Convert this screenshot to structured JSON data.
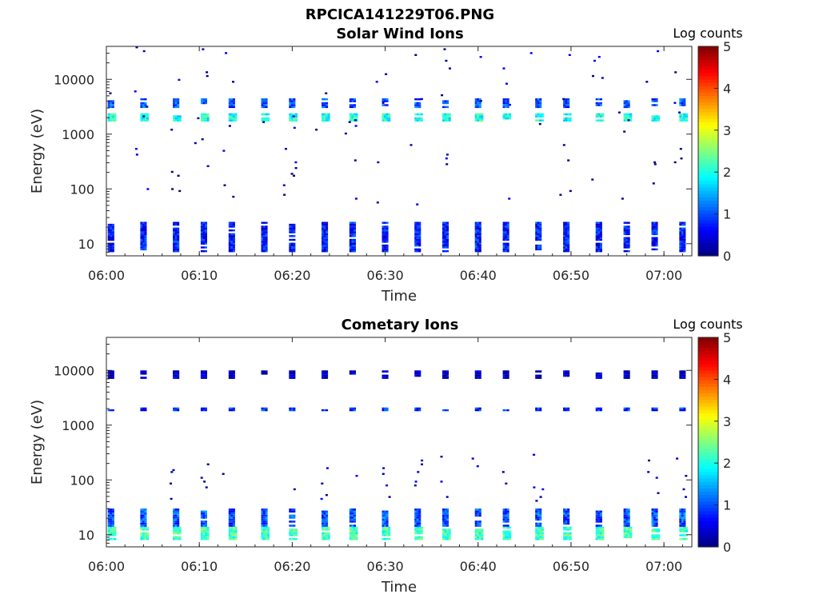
{
  "figure_title": "RPCICA141229T06.PNG",
  "colorbar": {
    "label": "Log counts",
    "ticks": [
      "0",
      "1",
      "2",
      "3",
      "4",
      "5"
    ],
    "range": [
      0,
      5
    ],
    "colormap": "jet"
  },
  "chart_data": [
    {
      "type": "heatmap",
      "title": "Solar Wind Ions",
      "xlabel": "Time",
      "ylabel": "Energy (eV)",
      "x_ticks": [
        "06:00",
        "06:10",
        "06:20",
        "06:30",
        "06:40",
        "06:50",
        "07:00"
      ],
      "y_ticks": [
        "10",
        "100",
        "1000",
        "10000"
      ],
      "xlim": [
        "06:00",
        "07:03"
      ],
      "ylim": [
        6,
        40000
      ],
      "yscale": "log",
      "scan_times": [
        "06:00:30",
        "06:04:00",
        "06:07:30",
        "06:10:30",
        "06:13:30",
        "06:17:00",
        "06:20:00",
        "06:23:30",
        "06:26:30",
        "06:30:00",
        "06:33:30",
        "06:36:30",
        "06:40:00",
        "06:43:00",
        "06:46:30",
        "06:49:30",
        "06:53:00",
        "06:56:00",
        "06:59:00",
        "07:02:00"
      ],
      "bands": [
        {
          "energy_range_eV": [
            1700,
            2400
          ],
          "log_counts": 2.0,
          "note": "solar wind peak"
        },
        {
          "energy_range_eV": [
            3000,
            4500
          ],
          "log_counts": 1.0
        },
        {
          "energy_range_eV": [
            7,
            25
          ],
          "log_counts": 0.7
        },
        {
          "energy_range_eV": [
            50,
            40000
          ],
          "log_counts": 0.2,
          "note": "sparse background"
        }
      ]
    },
    {
      "type": "heatmap",
      "title": "Cometary Ions",
      "xlabel": "Time",
      "ylabel": "Energy (eV)",
      "x_ticks": [
        "06:00",
        "06:10",
        "06:20",
        "06:30",
        "06:40",
        "06:50",
        "07:00"
      ],
      "y_ticks": [
        "10",
        "100",
        "1000",
        "10000"
      ],
      "xlim": [
        "06:00",
        "07:03"
      ],
      "ylim": [
        6,
        40000
      ],
      "yscale": "log",
      "scan_times": [
        "06:00:30",
        "06:04:00",
        "06:07:30",
        "06:10:30",
        "06:13:30",
        "06:17:00",
        "06:20:00",
        "06:23:30",
        "06:26:30",
        "06:30:00",
        "06:33:30",
        "06:36:30",
        "06:40:00",
        "06:43:00",
        "06:46:30",
        "06:49:30",
        "06:53:00",
        "06:56:00",
        "06:59:00",
        "07:02:00"
      ],
      "bands": [
        {
          "energy_range_eV": [
            8,
            14
          ],
          "log_counts": 2.2,
          "note": "cometary ion peak"
        },
        {
          "energy_range_eV": [
            14,
            30
          ],
          "log_counts": 1.0
        },
        {
          "energy_range_eV": [
            1800,
            2100
          ],
          "log_counts": 0.8
        },
        {
          "energy_range_eV": [
            7000,
            10000
          ],
          "log_counts": 0.3
        },
        {
          "energy_range_eV": [
            40,
            300
          ],
          "log_counts": 0.2,
          "note": "sparse background"
        }
      ]
    }
  ]
}
